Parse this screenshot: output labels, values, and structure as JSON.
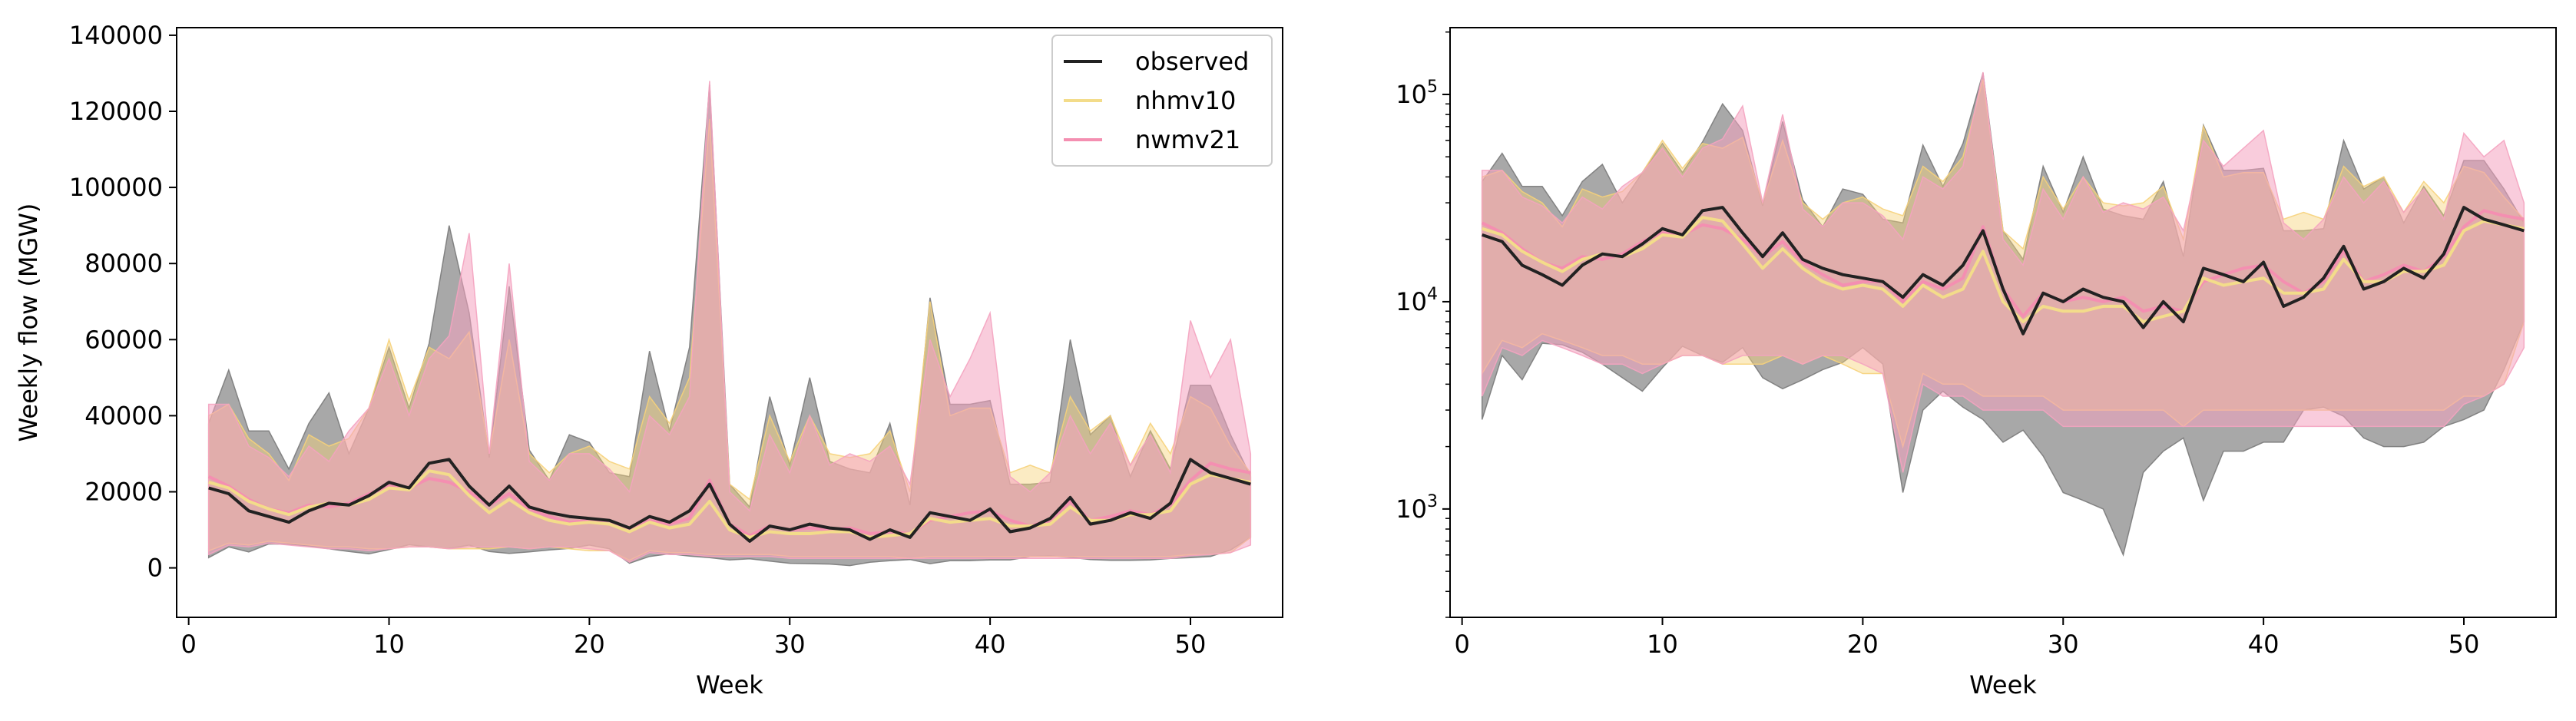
{
  "chart_data": [
    {
      "type": "area",
      "panel": "left",
      "title": "",
      "xlabel": "Week",
      "ylabel": "Weekly flow (MGW)",
      "yscale": "linear",
      "xlim": [
        -0.6,
        54.6
      ],
      "ylim": [
        -13000,
        142000
      ],
      "xticks": [
        0,
        10,
        20,
        30,
        40,
        50
      ],
      "yticks": [
        0,
        20000,
        40000,
        60000,
        80000,
        100000,
        120000,
        140000
      ],
      "ytick_labels": [
        "0",
        "20000",
        "40000",
        "60000",
        "80000",
        "100000",
        "120000",
        "140000"
      ],
      "legend": {
        "position": "top-right",
        "entries": [
          "observed",
          "nhmv10",
          "nwmv21"
        ]
      },
      "grid": false
    },
    {
      "type": "area",
      "panel": "right",
      "title": "",
      "xlabel": "Week",
      "ylabel": "",
      "yscale": "log",
      "xlim": [
        -0.6,
        54.6
      ],
      "ylim": [
        300,
        210000
      ],
      "xticks": [
        0,
        10,
        20,
        30,
        40,
        50
      ],
      "yticks_major": [
        1000,
        10000,
        100000
      ],
      "ytick_labels": [
        {
          "base": "10",
          "exp": "3"
        },
        {
          "base": "10",
          "exp": "4"
        },
        {
          "base": "10",
          "exp": "5"
        }
      ],
      "legend": null,
      "grid": false
    }
  ],
  "series_data": {
    "weeks": [
      1,
      2,
      3,
      4,
      5,
      6,
      7,
      8,
      9,
      10,
      11,
      12,
      13,
      14,
      15,
      16,
      17,
      18,
      19,
      20,
      21,
      22,
      23,
      24,
      25,
      26,
      27,
      28,
      29,
      30,
      31,
      32,
      33,
      34,
      35,
      36,
      37,
      38,
      39,
      40,
      41,
      42,
      43,
      44,
      45,
      46,
      47,
      48,
      49,
      50,
      51,
      52,
      53
    ],
    "series": [
      {
        "name": "observed",
        "line_color": "#222222",
        "fill_color": "#7a7a7a",
        "fill_opacity": 0.65,
        "median": [
          21000,
          19500,
          15000,
          13500,
          12000,
          15000,
          17000,
          16500,
          19000,
          22500,
          21000,
          27500,
          28500,
          21500,
          16500,
          21500,
          16000,
          14500,
          13500,
          13000,
          12500,
          10500,
          13500,
          12000,
          15000,
          22000,
          11500,
          7000,
          11000,
          10000,
          11500,
          10500,
          10000,
          7500,
          10000,
          8000,
          14500,
          13500,
          12500,
          15500,
          9500,
          10500,
          13000,
          18500,
          11500,
          12500,
          14500,
          13000,
          17000,
          28500,
          25000,
          23500,
          22000
        ],
        "min": [
          2700,
          5500,
          4200,
          6300,
          6200,
          5700,
          5000,
          4300,
          3700,
          4800,
          6100,
          5500,
          5100,
          6000,
          4300,
          3800,
          4200,
          4700,
          5100,
          6000,
          5000,
          1200,
          3000,
          3700,
          3100,
          2700,
          2100,
          2400,
          1800,
          1200,
          1100,
          1000,
          600,
          1500,
          1900,
          2200,
          1100,
          1900,
          1900,
          2100,
          2100,
          3000,
          3100,
          2800,
          2200,
          2000,
          2000,
          2100,
          2500,
          2700,
          3000,
          4700,
          8000
        ],
        "max": [
          38000,
          52000,
          36000,
          36000,
          26000,
          38000,
          46000,
          30000,
          42000,
          58000,
          42000,
          59000,
          90000,
          67000,
          29000,
          74000,
          31000,
          23000,
          35000,
          33000,
          25000,
          24000,
          57000,
          36000,
          58000,
          127000,
          22000,
          16000,
          45000,
          27000,
          50000,
          28000,
          26000,
          25000,
          38000,
          16500,
          71000,
          43000,
          43000,
          44000,
          22000,
          22000,
          22500,
          60000,
          35000,
          40000,
          24000,
          36000,
          26000,
          48000,
          48000,
          35000,
          24000
        ]
      },
      {
        "name": "nhmv10",
        "line_color": "#f3dc8a",
        "fill_color": "#f6d27a",
        "fill_opacity": 0.45,
        "median": [
          22500,
          21000,
          17500,
          15500,
          14000,
          16000,
          17000,
          16500,
          18000,
          21000,
          20500,
          25500,
          24500,
          19000,
          14500,
          18000,
          14500,
          12500,
          11500,
          12000,
          11500,
          9500,
          12000,
          10500,
          11500,
          17500,
          10000,
          8000,
          9500,
          9000,
          9000,
          9500,
          9500,
          8000,
          8500,
          9000,
          13000,
          12000,
          12500,
          13000,
          11000,
          11000,
          11500,
          16000,
          12500,
          12500,
          14000,
          14000,
          15000,
          22000,
          24500,
          23500,
          22500
        ],
        "min": [
          4500,
          6500,
          6000,
          7000,
          6500,
          6000,
          5500,
          5500,
          5000,
          5000,
          5500,
          5500,
          5000,
          5000,
          5000,
          5500,
          5000,
          5500,
          5000,
          4500,
          4500,
          2000,
          4500,
          4000,
          4000,
          3500,
          3500,
          3500,
          3500,
          3000,
          3000,
          3000,
          3000,
          3000,
          3000,
          2500,
          3000,
          3000,
          3000,
          3000,
          3000,
          3000,
          3000,
          3000,
          3000,
          3000,
          3000,
          3000,
          3000,
          3500,
          3500,
          4000,
          8000
        ],
        "max": [
          40000,
          43000,
          34000,
          30000,
          23000,
          35000,
          32000,
          34000,
          42000,
          60000,
          44000,
          58000,
          55000,
          62000,
          30000,
          60000,
          30000,
          25000,
          30000,
          32000,
          28000,
          26000,
          45000,
          38000,
          50000,
          118000,
          22000,
          18000,
          40000,
          28000,
          40000,
          30000,
          29000,
          30000,
          36000,
          20000,
          70000,
          40000,
          42000,
          42000,
          25000,
          27000,
          25000,
          45000,
          36000,
          40000,
          27000,
          38000,
          30000,
          45000,
          42000,
          32000,
          25000
        ]
      },
      {
        "name": "nwmv21",
        "line_color": "#f48fb1",
        "fill_color": "#f4a3c0",
        "fill_opacity": 0.55,
        "median": [
          24000,
          21500,
          18000,
          15500,
          14500,
          16500,
          16000,
          17000,
          19500,
          21500,
          21000,
          23500,
          22500,
          20000,
          16500,
          19500,
          15500,
          13500,
          12000,
          12500,
          12500,
          10000,
          12500,
          11500,
          13000,
          23000,
          11500,
          8500,
          11000,
          10000,
          10500,
          10000,
          10500,
          9000,
          9500,
          9000,
          12500,
          13500,
          14500,
          15000,
          12500,
          11000,
          12500,
          17500,
          12500,
          13500,
          15000,
          14000,
          16500,
          23000,
          27500,
          26000,
          25000
        ],
        "min": [
          3500,
          6000,
          5500,
          6500,
          6000,
          5500,
          5000,
          5000,
          4500,
          5000,
          5500,
          5500,
          5000,
          5500,
          5500,
          5500,
          5000,
          5500,
          5500,
          5000,
          4500,
          1500,
          4000,
          3500,
          3500,
          3000,
          3000,
          3000,
          3000,
          2500,
          2500,
          2500,
          2500,
          2500,
          2500,
          2500,
          2500,
          2500,
          2500,
          2500,
          2500,
          2500,
          2500,
          2500,
          2500,
          2500,
          2500,
          2500,
          2500,
          3200,
          3500,
          4000,
          6000
        ],
        "max": [
          43000,
          43000,
          32000,
          29000,
          24000,
          32000,
          28000,
          36000,
          42000,
          55000,
          40000,
          55000,
          61000,
          88000,
          30000,
          80000,
          28000,
          23000,
          30000,
          30000,
          26000,
          20000,
          40000,
          35000,
          45000,
          128000,
          20000,
          15000,
          35000,
          25000,
          40000,
          27000,
          30000,
          28000,
          32000,
          22000,
          60000,
          45000,
          55000,
          67000,
          24000,
          20000,
          25000,
          40000,
          30000,
          38000,
          27000,
          35000,
          25000,
          65000,
          50000,
          60000,
          30000
        ]
      }
    ]
  },
  "legend": {
    "observed": "observed",
    "nhmv10": "nhmv10",
    "nwmv21": "nwmv21"
  }
}
